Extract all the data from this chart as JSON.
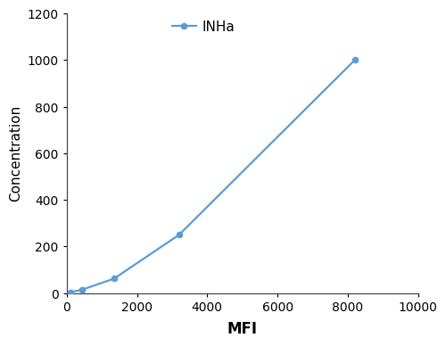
{
  "x": [
    100,
    450,
    1350,
    3200,
    8200
  ],
  "y": [
    3,
    15,
    62,
    250,
    1000
  ],
  "line_color": "#5B9BD5",
  "marker_color": "#5B9BD5",
  "marker_style": "o",
  "marker_size": 5,
  "line_width": 1.6,
  "legend_label": "INHa",
  "xlabel": "MFI",
  "ylabel": "Concentration",
  "xlim": [
    0,
    10000
  ],
  "ylim": [
    0,
    1200
  ],
  "xticks": [
    0,
    2000,
    4000,
    6000,
    8000,
    10000
  ],
  "yticks": [
    0,
    200,
    400,
    600,
    800,
    1000,
    1200
  ],
  "xlabel_fontsize": 12,
  "ylabel_fontsize": 11,
  "tick_fontsize": 10,
  "legend_fontsize": 11,
  "background_color": "#ffffff",
  "spine_color": "#444444"
}
